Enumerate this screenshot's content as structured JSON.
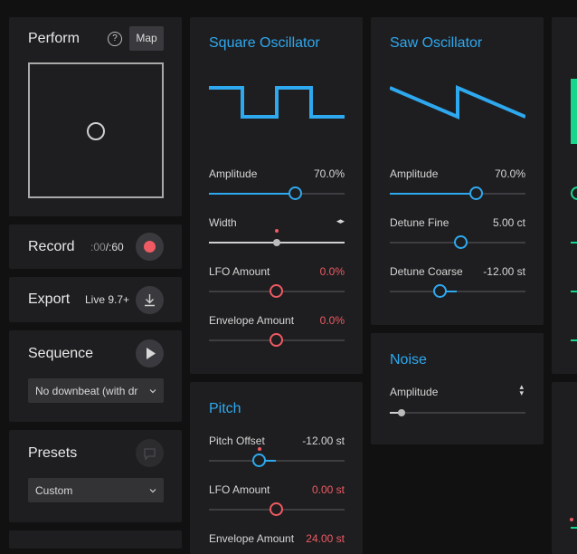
{
  "perform": {
    "title": "Perform",
    "help_icon": "?",
    "map_label": "Map"
  },
  "record": {
    "title": "Record",
    "time_elapsed": ":00",
    "time_total": "/:60"
  },
  "export": {
    "title": "Export",
    "version": "Live 9.7+"
  },
  "sequence": {
    "title": "Sequence",
    "downbeat_value": "No downbeat (with dr"
  },
  "presets": {
    "title": "Presets",
    "preset_value": "Custom"
  },
  "square_osc": {
    "title": "Square Oscillator",
    "amplitude_label": "Amplitude",
    "amplitude_value": "70.0%",
    "amplitude_level": 0.7,
    "width_label": "Width",
    "width_icon": "◂▸",
    "width_level": 0.5,
    "lfo_label": "LFO Amount",
    "lfo_value": "0.0%",
    "lfo_level": 0.5,
    "env_label": "Envelope Amount",
    "env_value": "0.0%",
    "env_level": 0.5
  },
  "saw_osc": {
    "title": "Saw Oscillator",
    "amplitude_label": "Amplitude",
    "amplitude_value": "70.0%",
    "amplitude_level": 0.7,
    "fine_label": "Detune Fine",
    "fine_value": "5.00 ct",
    "fine_level": 0.52,
    "coarse_label": "Detune Coarse",
    "coarse_value": "-12.00 st",
    "coarse_level": 0.4
  },
  "noise": {
    "title": "Noise",
    "amplitude_label": "Amplitude",
    "amplitude_icon": "▴▾",
    "amplitude_level": 0.08
  },
  "pitch": {
    "title": "Pitch",
    "offset_label": "Pitch Offset",
    "offset_value": "-12.00 st",
    "offset_level": 0.4,
    "lfo_label": "LFO Amount",
    "lfo_value": "0.00 st",
    "lfo_level": 0.5,
    "env_label": "Envelope Amount",
    "env_value": "24.00 st"
  },
  "colors": {
    "accent": "#2ea8ee",
    "record": "#ef5a63",
    "modulation": "#ef5a63",
    "edge_green": "#19d68e"
  }
}
